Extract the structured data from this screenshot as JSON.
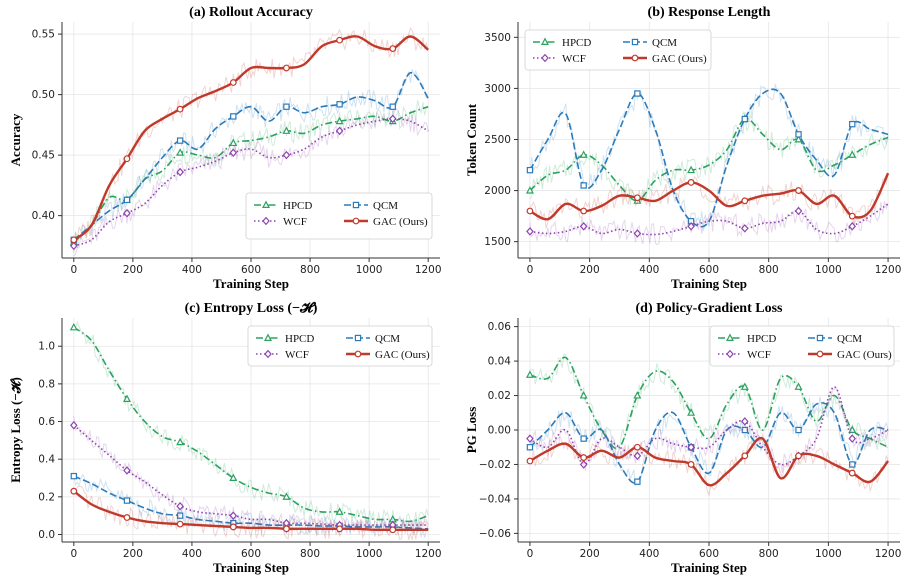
{
  "chart_data": [
    {
      "type": "line",
      "title": "(a) Rollout Accuracy",
      "xlabel": "Training Step",
      "ylabel": "Accuracy",
      "xlim": [
        -40,
        1240
      ],
      "ylim": [
        0.365,
        0.56
      ],
      "xticks": [
        0,
        200,
        400,
        600,
        800,
        1000,
        1200
      ],
      "yticks": [
        0.4,
        0.45,
        0.5,
        0.55
      ],
      "ytick_labels": [
        "0.40",
        "0.45",
        "0.50",
        "0.55"
      ],
      "grid": true,
      "legend": "lower-right",
      "x": [
        0,
        60,
        120,
        180,
        240,
        300,
        360,
        420,
        480,
        540,
        600,
        660,
        720,
        780,
        840,
        900,
        960,
        1020,
        1080,
        1140,
        1200
      ],
      "series": [
        {
          "name": "HPCD",
          "color": "#2ca25f",
          "style": "dashdot",
          "marker": "triangle",
          "values": [
            0.378,
            0.392,
            0.415,
            0.413,
            0.43,
            0.437,
            0.452,
            0.45,
            0.448,
            0.46,
            0.462,
            0.465,
            0.47,
            0.468,
            0.475,
            0.478,
            0.48,
            0.482,
            0.478,
            0.485,
            0.49
          ]
        },
        {
          "name": "QCM",
          "color": "#2b7bba",
          "style": "dashed",
          "marker": "square",
          "values": [
            0.38,
            0.392,
            0.404,
            0.413,
            0.43,
            0.448,
            0.462,
            0.455,
            0.472,
            0.482,
            0.49,
            0.478,
            0.49,
            0.485,
            0.49,
            0.492,
            0.498,
            0.495,
            0.49,
            0.518,
            0.497
          ]
        },
        {
          "name": "WCF",
          "color": "#8e44ad",
          "style": "dotted",
          "marker": "diamond",
          "values": [
            0.375,
            0.38,
            0.395,
            0.402,
            0.41,
            0.425,
            0.436,
            0.44,
            0.445,
            0.452,
            0.455,
            0.448,
            0.45,
            0.455,
            0.465,
            0.47,
            0.475,
            0.478,
            0.48,
            0.478,
            0.47
          ]
        },
        {
          "name": "GAC (Ours)",
          "color": "#c0392b",
          "style": "solid",
          "marker": "circle",
          "values": [
            0.38,
            0.392,
            0.425,
            0.447,
            0.47,
            0.48,
            0.488,
            0.497,
            0.503,
            0.51,
            0.522,
            0.522,
            0.522,
            0.525,
            0.54,
            0.545,
            0.548,
            0.54,
            0.538,
            0.548,
            0.537
          ]
        }
      ]
    },
    {
      "type": "line",
      "title": "(b) Response Length",
      "xlabel": "Training Step",
      "ylabel": "Token Count",
      "xlim": [
        -40,
        1240
      ],
      "ylim": [
        1340,
        3650
      ],
      "xticks": [
        0,
        200,
        400,
        600,
        800,
        1000,
        1200
      ],
      "yticks": [
        1500,
        2000,
        2500,
        3000,
        3500
      ],
      "ytick_labels": [
        "1500",
        "2000",
        "2500",
        "3000",
        "3500"
      ],
      "grid": true,
      "legend": "top-left",
      "x": [
        0,
        60,
        120,
        180,
        240,
        300,
        360,
        420,
        480,
        540,
        600,
        660,
        720,
        780,
        840,
        900,
        960,
        1020,
        1080,
        1140,
        1200
      ],
      "series": [
        {
          "name": "HPCD",
          "color": "#2ca25f",
          "style": "dashdot",
          "marker": "triangle",
          "values": [
            2000,
            2150,
            2200,
            2350,
            2250,
            2050,
            1900,
            2100,
            2200,
            2200,
            2250,
            2400,
            2700,
            2550,
            2400,
            2500,
            2200,
            2250,
            2350,
            2450,
            2520
          ]
        },
        {
          "name": "QCM",
          "color": "#2b7bba",
          "style": "dashed",
          "marker": "square",
          "values": [
            2200,
            2500,
            2750,
            2050,
            2200,
            2600,
            2950,
            2600,
            2000,
            1700,
            1700,
            2250,
            2700,
            2950,
            2950,
            2550,
            2300,
            2150,
            2650,
            2600,
            2550
          ]
        },
        {
          "name": "WCF",
          "color": "#8e44ad",
          "style": "dotted",
          "marker": "diamond",
          "values": [
            1600,
            1580,
            1600,
            1650,
            1580,
            1620,
            1580,
            1570,
            1600,
            1650,
            1700,
            1700,
            1630,
            1680,
            1700,
            1800,
            1620,
            1580,
            1650,
            1750,
            1870
          ]
        },
        {
          "name": "GAC (Ours)",
          "color": "#c0392b",
          "style": "solid",
          "marker": "circle",
          "values": [
            1800,
            1720,
            1870,
            1800,
            1850,
            1950,
            1930,
            1900,
            2000,
            2080,
            2000,
            1850,
            1900,
            1950,
            1970,
            2000,
            1870,
            1950,
            1750,
            1800,
            2170
          ]
        }
      ]
    },
    {
      "type": "line",
      "title": "(c) Entropy Loss (−𝓗)",
      "xlabel": "Training Step",
      "ylabel": "Entropy Loss (−𝓗)",
      "xlim": [
        -40,
        1240
      ],
      "ylim": [
        -0.04,
        1.15
      ],
      "xticks": [
        0,
        200,
        400,
        600,
        800,
        1000,
        1200
      ],
      "yticks": [
        0.0,
        0.2,
        0.4,
        0.6,
        0.8,
        1.0
      ],
      "ytick_labels": [
        "0.0",
        "0.2",
        "0.4",
        "0.6",
        "0.8",
        "1.0"
      ],
      "grid": true,
      "legend": "top-right",
      "x": [
        0,
        60,
        120,
        180,
        240,
        300,
        360,
        420,
        480,
        540,
        600,
        660,
        720,
        780,
        840,
        900,
        960,
        1020,
        1080,
        1140,
        1200
      ],
      "series": [
        {
          "name": "HPCD",
          "color": "#2ca25f",
          "style": "dashdot",
          "marker": "triangle",
          "values": [
            1.1,
            1.03,
            0.87,
            0.72,
            0.6,
            0.52,
            0.49,
            0.44,
            0.37,
            0.3,
            0.25,
            0.22,
            0.2,
            0.14,
            0.12,
            0.12,
            0.1,
            0.08,
            0.08,
            0.07,
            0.1
          ]
        },
        {
          "name": "QCM",
          "color": "#2b7bba",
          "style": "dashed",
          "marker": "square",
          "values": [
            0.31,
            0.27,
            0.22,
            0.18,
            0.14,
            0.11,
            0.1,
            0.08,
            0.07,
            0.06,
            0.06,
            0.05,
            0.05,
            0.05,
            0.045,
            0.045,
            0.04,
            0.04,
            0.04,
            0.035,
            0.03
          ]
        },
        {
          "name": "WCF",
          "color": "#8e44ad",
          "style": "dotted",
          "marker": "diamond",
          "values": [
            0.58,
            0.5,
            0.42,
            0.34,
            0.28,
            0.21,
            0.15,
            0.12,
            0.11,
            0.1,
            0.08,
            0.08,
            0.06,
            0.06,
            0.055,
            0.05,
            0.05,
            0.05,
            0.05,
            0.05,
            0.05
          ]
        },
        {
          "name": "GAC (Ours)",
          "color": "#c0392b",
          "style": "solid",
          "marker": "circle",
          "values": [
            0.23,
            0.16,
            0.12,
            0.09,
            0.07,
            0.06,
            0.055,
            0.05,
            0.045,
            0.04,
            0.035,
            0.035,
            0.03,
            0.03,
            0.03,
            0.03,
            0.03,
            0.025,
            0.025,
            0.025,
            0.025
          ]
        }
      ]
    },
    {
      "type": "line",
      "title": "(d) Policy-Gradient Loss",
      "xlabel": "Training Step",
      "ylabel": "PG Loss",
      "xlim": [
        -40,
        1240
      ],
      "ylim": [
        -0.065,
        0.065
      ],
      "xticks": [
        0,
        200,
        400,
        600,
        800,
        1000,
        1200
      ],
      "yticks": [
        -0.06,
        -0.04,
        -0.02,
        0.0,
        0.02,
        0.04,
        0.06
      ],
      "ytick_labels": [
        "−0.06",
        "−0.04",
        "−0.02",
        "0.00",
        "0.02",
        "0.04",
        "0.06"
      ],
      "grid": true,
      "legend": "top-right",
      "x": [
        0,
        60,
        120,
        180,
        240,
        300,
        360,
        420,
        480,
        540,
        600,
        660,
        720,
        780,
        840,
        900,
        960,
        1020,
        1080,
        1140,
        1200
      ],
      "series": [
        {
          "name": "HPCD",
          "color": "#2ca25f",
          "style": "dashdot",
          "marker": "triangle",
          "values": [
            0.032,
            0.03,
            0.042,
            0.02,
            0.0,
            -0.01,
            0.02,
            0.034,
            0.028,
            0.01,
            -0.005,
            0.015,
            0.025,
            0.0,
            0.03,
            0.025,
            0.005,
            0.02,
            0.0,
            -0.005,
            -0.01
          ]
        },
        {
          "name": "QCM",
          "color": "#2b7bba",
          "style": "dashed",
          "marker": "square",
          "values": [
            -0.01,
            0.0,
            0.01,
            -0.005,
            0.0,
            -0.02,
            -0.03,
            0.0,
            0.01,
            -0.01,
            -0.025,
            0.0,
            0.0,
            -0.01,
            0.01,
            0.0,
            0.015,
            0.01,
            -0.02,
            0.0,
            0.0
          ]
        },
        {
          "name": "WCF",
          "color": "#8e44ad",
          "style": "dotted",
          "marker": "diamond",
          "values": [
            -0.005,
            -0.01,
            0.0,
            -0.02,
            -0.005,
            -0.01,
            -0.015,
            -0.005,
            -0.008,
            -0.01,
            -0.01,
            0.0,
            0.005,
            -0.01,
            -0.02,
            -0.015,
            -0.005,
            0.025,
            -0.005,
            -0.005,
            0.0
          ]
        },
        {
          "name": "GAC (Ours)",
          "color": "#c0392b",
          "style": "solid",
          "marker": "circle",
          "values": [
            -0.018,
            -0.012,
            -0.008,
            -0.016,
            -0.012,
            -0.016,
            -0.01,
            -0.016,
            -0.018,
            -0.02,
            -0.032,
            -0.025,
            -0.015,
            -0.005,
            -0.028,
            -0.015,
            -0.015,
            -0.02,
            -0.025,
            -0.03,
            -0.018
          ]
        }
      ]
    }
  ]
}
